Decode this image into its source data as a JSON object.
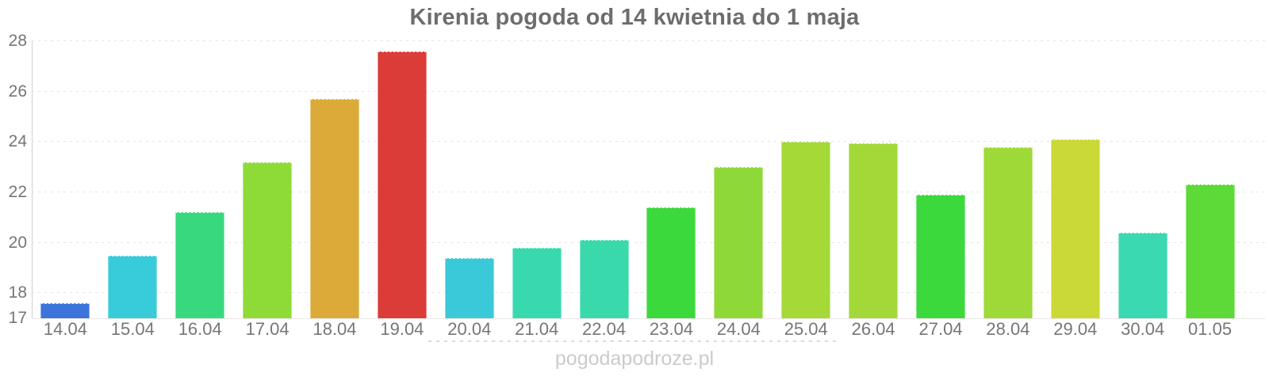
{
  "chart_data": {
    "type": "bar",
    "title": "Kirenia pogoda od 14 kwietnia do 1 maja",
    "categories": [
      "14.04",
      "15.04",
      "16.04",
      "17.04",
      "18.04",
      "19.04",
      "20.04",
      "21.04",
      "22.04",
      "23.04",
      "24.04",
      "25.04",
      "26.04",
      "27.04",
      "28.04",
      "29.04",
      "30.04",
      "01.05"
    ],
    "values": [
      17.6,
      19.5,
      21.2,
      23.2,
      25.7,
      27.6,
      19.4,
      19.8,
      20.1,
      21.4,
      23.0,
      24.0,
      23.95,
      21.9,
      23.8,
      24.1,
      20.4,
      22.3
    ],
    "bar_colors": [
      "#3b74db",
      "#38cbd9",
      "#38d97e",
      "#8edb38",
      "#dbaa38",
      "#db3c38",
      "#39c9d9",
      "#39d9b0",
      "#39d9ab",
      "#3bd93b",
      "#8ed938",
      "#a4d938",
      "#a2d938",
      "#3cd93c",
      "#9fd938",
      "#cbd938",
      "#3ad9b1",
      "#5dd938"
    ],
    "xlabel": "",
    "ylabel": "",
    "ylim": [
      17,
      28
    ],
    "yticks": [
      17,
      18,
      20,
      22,
      24,
      26,
      28
    ],
    "grid": "horizontal dotted lines at 18-28, legend none"
  },
  "footer": {
    "watermark": "pogodapodroze.pl"
  },
  "colors": {
    "background": "#ffffff",
    "title_text": "#6d6d6d",
    "axis_text": "#757575",
    "grid_line": "#e9e2e2",
    "axis_line": "#d9cccc",
    "watermark_text": "#cbcbcb"
  }
}
